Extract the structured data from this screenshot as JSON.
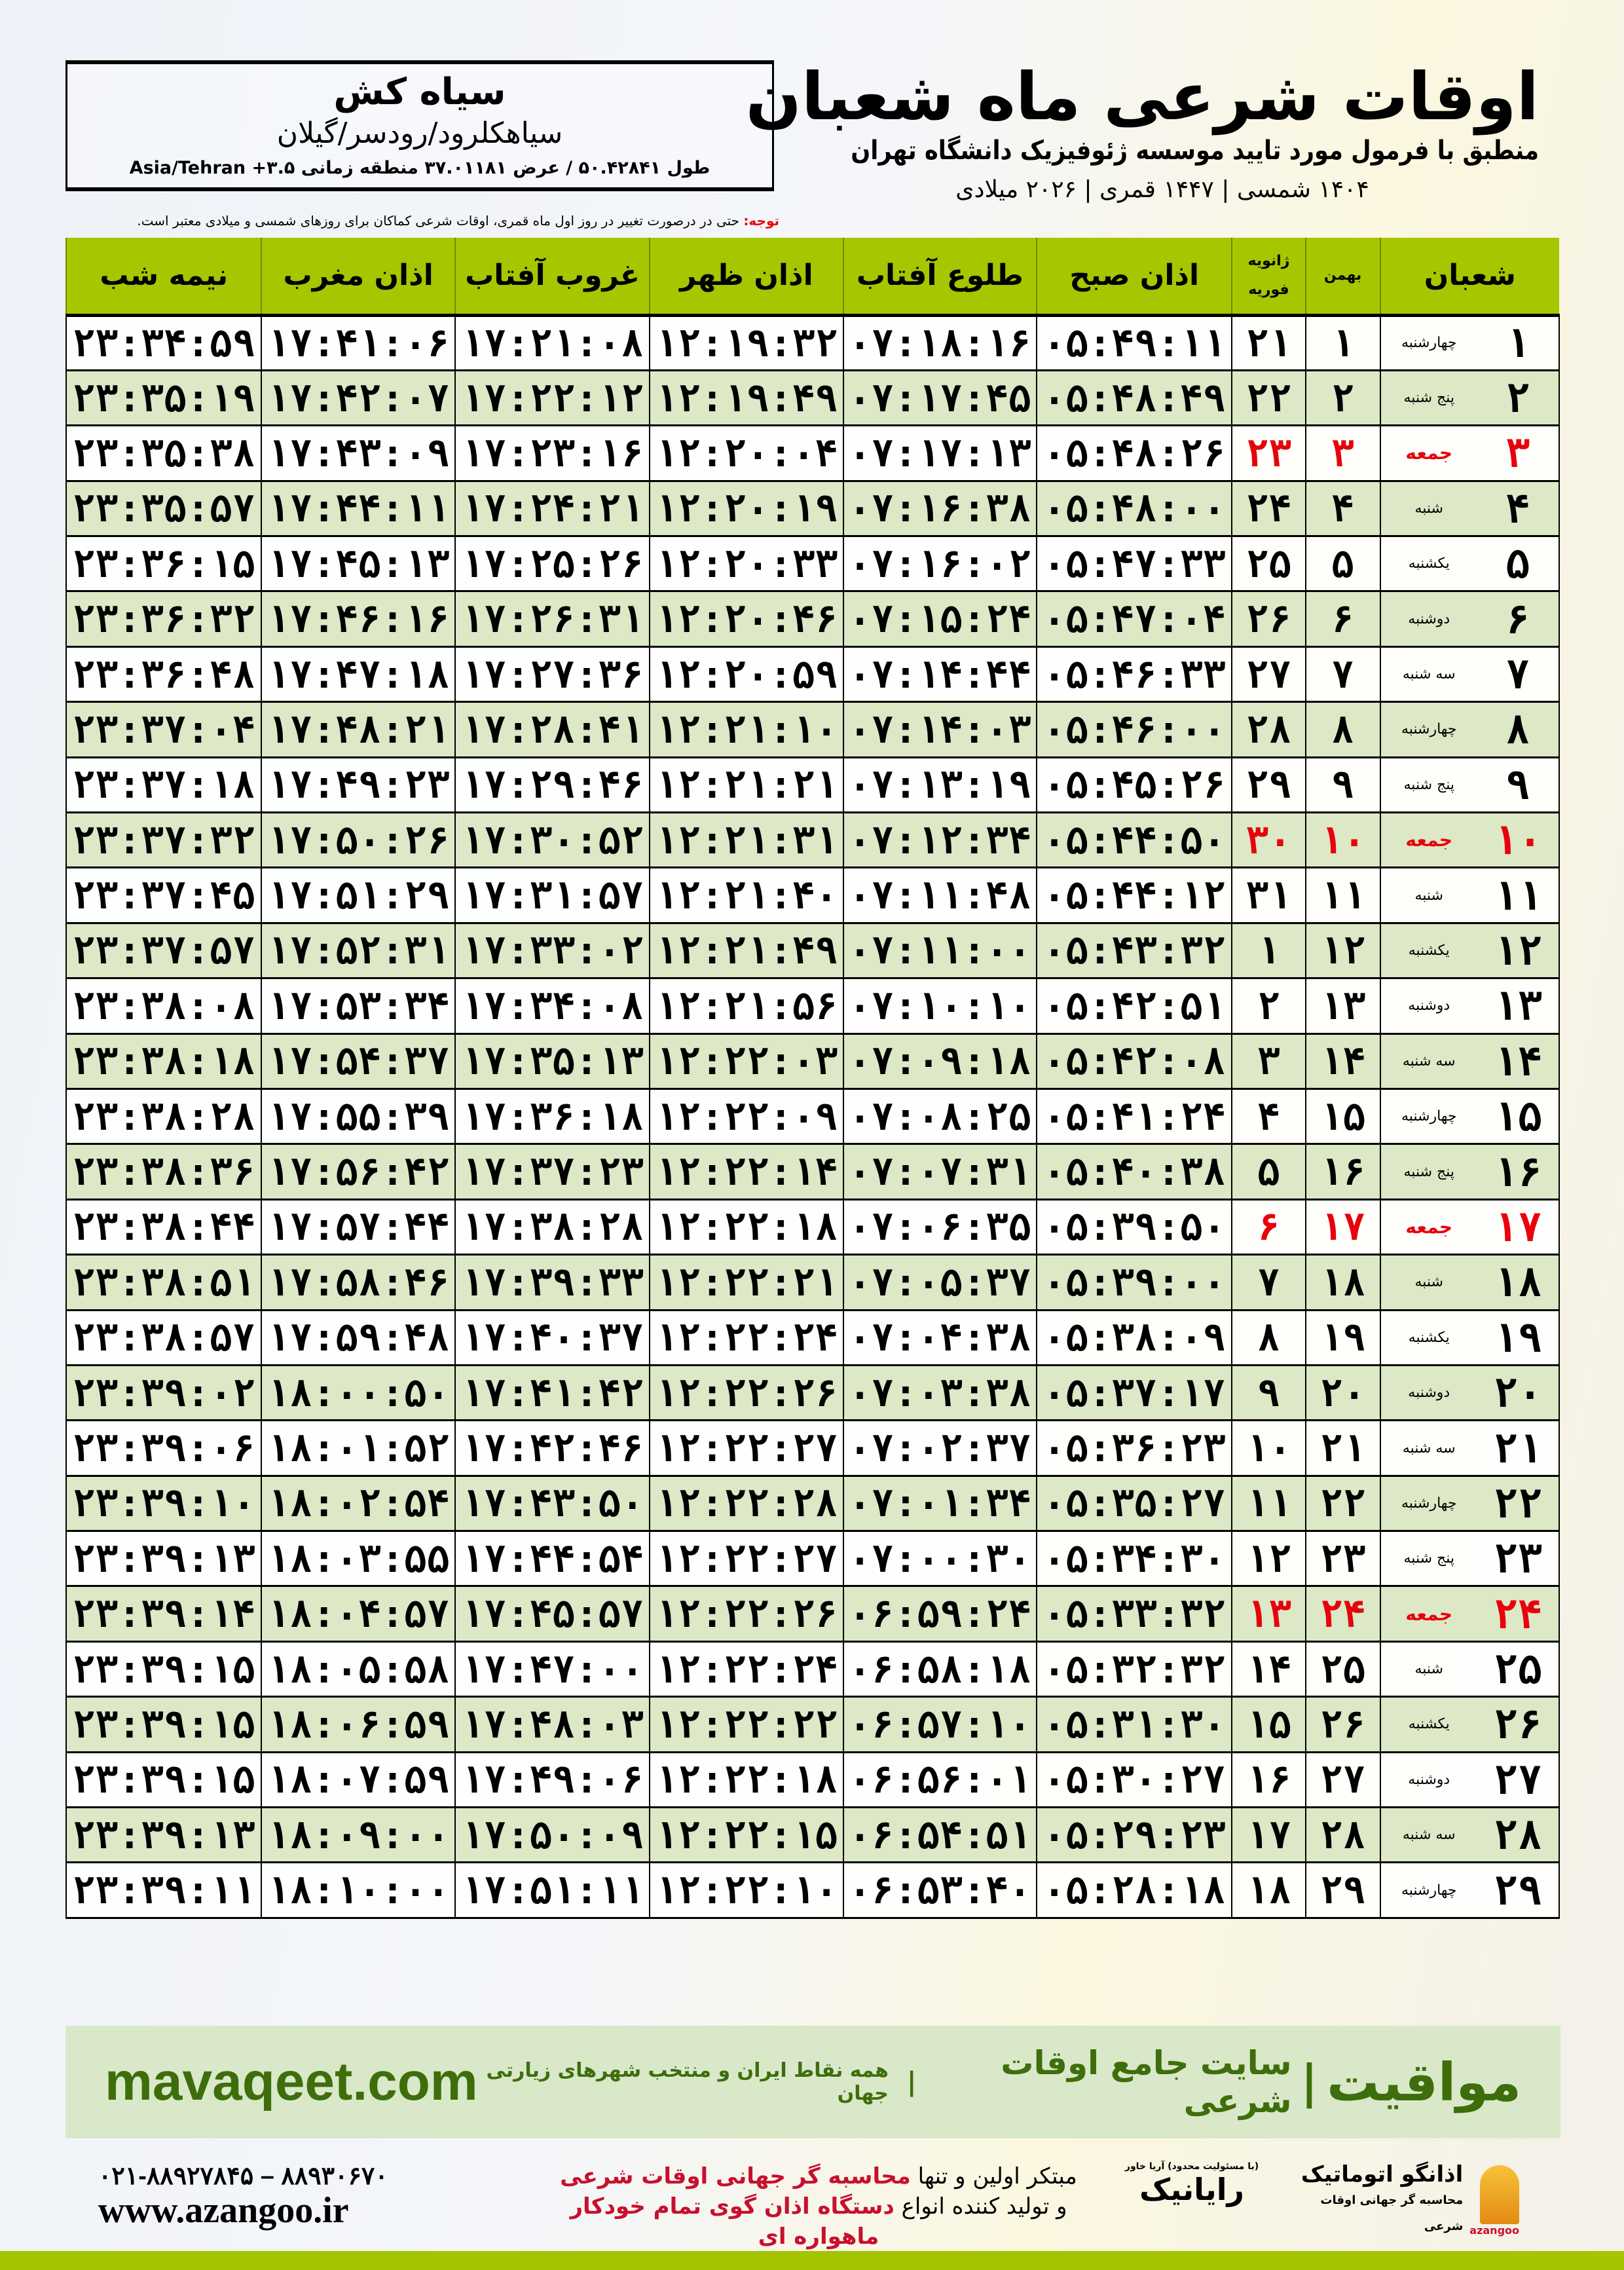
{
  "location": {
    "name": "سیاه کش",
    "region": "سیاهکلرود/رودسر/گیلان",
    "coords": "طول ۵۰.۴۲۸۴۱ / عرض ۳۷.۰۱۱۸۱ منطقه زمانی ۳.۵+ Asia/Tehran"
  },
  "header": {
    "title": "اوقات شرعی ماه شعبان",
    "subtitle": "منطبق با فرمول مورد تایید موسسه ژئوفیزیک دانشگاه تهران",
    "years": "۱۴۰۴ شمسی | ۱۴۴۷ قمری | ۲۰۲۶ میلادی"
  },
  "note": {
    "label": "توجه:",
    "text": " حتی در درصورت تغییر در روز اول ماه قمری، اوقات شرعی کماکان برای روزهای شمسی و میلادی معتبر است."
  },
  "table": {
    "headers": {
      "shaban": "شعبان",
      "bahman": "بهمن",
      "gregorian_1": "ژانویه",
      "gregorian_2": "فوریه",
      "sobh": "اذان صبح",
      "tolu": "طلوع آفتاب",
      "zohr": "اذان ظهر",
      "ghorub": "غروب آفتاب",
      "maghrib": "اذان مغرب",
      "nime": "نیمه شب"
    },
    "accent_header": "#a6c600",
    "friday_color": "#e8000b",
    "rows": [
      [
        "۱",
        "چهارشنبه",
        "۱",
        "۲۱",
        "۰۵:۴۹:۱۱",
        "۰۷:۱۸:۱۶",
        "۱۲:۱۹:۳۲",
        "۱۷:۲۱:۰۸",
        "۱۷:۴۱:۰۶",
        "۲۳:۳۴:۵۹"
      ],
      [
        "۲",
        "پنج شنبه",
        "۲",
        "۲۲",
        "۰۵:۴۸:۴۹",
        "۰۷:۱۷:۴۵",
        "۱۲:۱۹:۴۹",
        "۱۷:۲۲:۱۲",
        "۱۷:۴۲:۰۷",
        "۲۳:۳۵:۱۹"
      ],
      [
        "۳",
        "جمعه",
        "۳",
        "۲۳",
        "۰۵:۴۸:۲۶",
        "۰۷:۱۷:۱۳",
        "۱۲:۲۰:۰۴",
        "۱۷:۲۳:۱۶",
        "۱۷:۴۳:۰۹",
        "۲۳:۳۵:۳۸"
      ],
      [
        "۴",
        "شنبه",
        "۴",
        "۲۴",
        "۰۵:۴۸:۰۰",
        "۰۷:۱۶:۳۸",
        "۱۲:۲۰:۱۹",
        "۱۷:۲۴:۲۱",
        "۱۷:۴۴:۱۱",
        "۲۳:۳۵:۵۷"
      ],
      [
        "۵",
        "یکشنبه",
        "۵",
        "۲۵",
        "۰۵:۴۷:۳۳",
        "۰۷:۱۶:۰۲",
        "۱۲:۲۰:۳۳",
        "۱۷:۲۵:۲۶",
        "۱۷:۴۵:۱۳",
        "۲۳:۳۶:۱۵"
      ],
      [
        "۶",
        "دوشنبه",
        "۶",
        "۲۶",
        "۰۵:۴۷:۰۴",
        "۰۷:۱۵:۲۴",
        "۱۲:۲۰:۴۶",
        "۱۷:۲۶:۳۱",
        "۱۷:۴۶:۱۶",
        "۲۳:۳۶:۳۲"
      ],
      [
        "۷",
        "سه شنبه",
        "۷",
        "۲۷",
        "۰۵:۴۶:۳۳",
        "۰۷:۱۴:۴۴",
        "۱۲:۲۰:۵۹",
        "۱۷:۲۷:۳۶",
        "۱۷:۴۷:۱۸",
        "۲۳:۳۶:۴۸"
      ],
      [
        "۸",
        "چهارشنبه",
        "۸",
        "۲۸",
        "۰۵:۴۶:۰۰",
        "۰۷:۱۴:۰۳",
        "۱۲:۲۱:۱۰",
        "۱۷:۲۸:۴۱",
        "۱۷:۴۸:۲۱",
        "۲۳:۳۷:۰۴"
      ],
      [
        "۹",
        "پنج شنبه",
        "۹",
        "۲۹",
        "۰۵:۴۵:۲۶",
        "۰۷:۱۳:۱۹",
        "۱۲:۲۱:۲۱",
        "۱۷:۲۹:۴۶",
        "۱۷:۴۹:۲۳",
        "۲۳:۳۷:۱۸"
      ],
      [
        "۱۰",
        "جمعه",
        "۱۰",
        "۳۰",
        "۰۵:۴۴:۵۰",
        "۰۷:۱۲:۳۴",
        "۱۲:۲۱:۳۱",
        "۱۷:۳۰:۵۲",
        "۱۷:۵۰:۲۶",
        "۲۳:۳۷:۳۲"
      ],
      [
        "۱۱",
        "شنبه",
        "۱۱",
        "۳۱",
        "۰۵:۴۴:۱۲",
        "۰۷:۱۱:۴۸",
        "۱۲:۲۱:۴۰",
        "۱۷:۳۱:۵۷",
        "۱۷:۵۱:۲۹",
        "۲۳:۳۷:۴۵"
      ],
      [
        "۱۲",
        "یکشنبه",
        "۱۲",
        "۱",
        "۰۵:۴۳:۳۲",
        "۰۷:۱۱:۰۰",
        "۱۲:۲۱:۴۹",
        "۱۷:۳۳:۰۲",
        "۱۷:۵۲:۳۱",
        "۲۳:۳۷:۵۷"
      ],
      [
        "۱۳",
        "دوشنبه",
        "۱۳",
        "۲",
        "۰۵:۴۲:۵۱",
        "۰۷:۱۰:۱۰",
        "۱۲:۲۱:۵۶",
        "۱۷:۳۴:۰۸",
        "۱۷:۵۳:۳۴",
        "۲۳:۳۸:۰۸"
      ],
      [
        "۱۴",
        "سه شنبه",
        "۱۴",
        "۳",
        "۰۵:۴۲:۰۸",
        "۰۷:۰۹:۱۸",
        "۱۲:۲۲:۰۳",
        "۱۷:۳۵:۱۳",
        "۱۷:۵۴:۳۷",
        "۲۳:۳۸:۱۸"
      ],
      [
        "۱۵",
        "چهارشنبه",
        "۱۵",
        "۴",
        "۰۵:۴۱:۲۴",
        "۰۷:۰۸:۲۵",
        "۱۲:۲۲:۰۹",
        "۱۷:۳۶:۱۸",
        "۱۷:۵۵:۳۹",
        "۲۳:۳۸:۲۸"
      ],
      [
        "۱۶",
        "پنج شنبه",
        "۱۶",
        "۵",
        "۰۵:۴۰:۳۸",
        "۰۷:۰۷:۳۱",
        "۱۲:۲۲:۱۴",
        "۱۷:۳۷:۲۳",
        "۱۷:۵۶:۴۲",
        "۲۳:۳۸:۳۶"
      ],
      [
        "۱۷",
        "جمعه",
        "۱۷",
        "۶",
        "۰۵:۳۹:۵۰",
        "۰۷:۰۶:۳۵",
        "۱۲:۲۲:۱۸",
        "۱۷:۳۸:۲۸",
        "۱۷:۵۷:۴۴",
        "۲۳:۳۸:۴۴"
      ],
      [
        "۱۸",
        "شنبه",
        "۱۸",
        "۷",
        "۰۵:۳۹:۰۰",
        "۰۷:۰۵:۳۷",
        "۱۲:۲۲:۲۱",
        "۱۷:۳۹:۳۳",
        "۱۷:۵۸:۴۶",
        "۲۳:۳۸:۵۱"
      ],
      [
        "۱۹",
        "یکشنبه",
        "۱۹",
        "۸",
        "۰۵:۳۸:۰۹",
        "۰۷:۰۴:۳۸",
        "۱۲:۲۲:۲۴",
        "۱۷:۴۰:۳۷",
        "۱۷:۵۹:۴۸",
        "۲۳:۳۸:۵۷"
      ],
      [
        "۲۰",
        "دوشنبه",
        "۲۰",
        "۹",
        "۰۵:۳۷:۱۷",
        "۰۷:۰۳:۳۸",
        "۱۲:۲۲:۲۶",
        "۱۷:۴۱:۴۲",
        "۱۸:۰۰:۵۰",
        "۲۳:۳۹:۰۲"
      ],
      [
        "۲۱",
        "سه شنبه",
        "۲۱",
        "۱۰",
        "۰۵:۳۶:۲۳",
        "۰۷:۰۲:۳۷",
        "۱۲:۲۲:۲۷",
        "۱۷:۴۲:۴۶",
        "۱۸:۰۱:۵۲",
        "۲۳:۳۹:۰۶"
      ],
      [
        "۲۲",
        "چهارشنبه",
        "۲۲",
        "۱۱",
        "۰۵:۳۵:۲۷",
        "۰۷:۰۱:۳۴",
        "۱۲:۲۲:۲۸",
        "۱۷:۴۳:۵۰",
        "۱۸:۰۲:۵۴",
        "۲۳:۳۹:۱۰"
      ],
      [
        "۲۳",
        "پنج شنبه",
        "۲۳",
        "۱۲",
        "۰۵:۳۴:۳۰",
        "۰۷:۰۰:۳۰",
        "۱۲:۲۲:۲۷",
        "۱۷:۴۴:۵۴",
        "۱۸:۰۳:۵۵",
        "۲۳:۳۹:۱۳"
      ],
      [
        "۲۴",
        "جمعه",
        "۲۴",
        "۱۳",
        "۰۵:۳۳:۳۲",
        "۰۶:۵۹:۲۴",
        "۱۲:۲۲:۲۶",
        "۱۷:۴۵:۵۷",
        "۱۸:۰۴:۵۷",
        "۲۳:۳۹:۱۴"
      ],
      [
        "۲۵",
        "شنبه",
        "۲۵",
        "۱۴",
        "۰۵:۳۲:۳۲",
        "۰۶:۵۸:۱۸",
        "۱۲:۲۲:۲۴",
        "۱۷:۴۷:۰۰",
        "۱۸:۰۵:۵۸",
        "۲۳:۳۹:۱۵"
      ],
      [
        "۲۶",
        "یکشنبه",
        "۲۶",
        "۱۵",
        "۰۵:۳۱:۳۰",
        "۰۶:۵۷:۱۰",
        "۱۲:۲۲:۲۲",
        "۱۷:۴۸:۰۳",
        "۱۸:۰۶:۵۹",
        "۲۳:۳۹:۱۵"
      ],
      [
        "۲۷",
        "دوشنبه",
        "۲۷",
        "۱۶",
        "۰۵:۳۰:۲۷",
        "۰۶:۵۶:۰۱",
        "۱۲:۲۲:۱۸",
        "۱۷:۴۹:۰۶",
        "۱۸:۰۷:۵۹",
        "۲۳:۳۹:۱۵"
      ],
      [
        "۲۸",
        "سه شنبه",
        "۲۸",
        "۱۷",
        "۰۵:۲۹:۲۳",
        "۰۶:۵۴:۵۱",
        "۱۲:۲۲:۱۵",
        "۱۷:۵۰:۰۹",
        "۱۸:۰۹:۰۰",
        "۲۳:۳۹:۱۳"
      ],
      [
        "۲۹",
        "چهارشنبه",
        "۲۹",
        "۱۸",
        "۰۵:۲۸:۱۸",
        "۰۶:۵۳:۴۰",
        "۱۲:۲۲:۱۰",
        "۱۷:۵۱:۱۱",
        "۱۸:۱۰:۰۰",
        "۲۳:۳۹:۱۱"
      ]
    ]
  },
  "banner": {
    "brand": "مواقیت",
    "tagline": "سایت جامع اوقات شرعی",
    "tagline2": "همه نقاط ایران و منتخب شهرهای زیارتی جهان",
    "url": "mavaqeet.com",
    "color": "#3e6e0b",
    "background": "#d9e8c9"
  },
  "footer": {
    "phone": "۰۲۱-۸۸۹۲۷۸۴۵ – ۸۸۹۳۰۶۷۰",
    "website": "www.azangoo.ir",
    "slogan_1a": "مبتکر اولین و تنها ",
    "slogan_1b": "محاسبه گر جهانی اوقات شرعی",
    "slogan_2a": "و تولید کننده انواع ",
    "slogan_2b": "دستگاه اذان گوی تمام خودکار ماهواره ای",
    "logo_rayanik": "رایانیک",
    "logo_rayanik_small": "(با مسئولیت محدود) آریا خاور",
    "logo_azangoo": "اذانگو اتوماتیک",
    "logo_azangoo_small": "محاسبه گر جهانی اوقات شرعی",
    "logo_azangoo_en": "azangoo",
    "accent": "#c8102e",
    "bar_color": "#a5c400"
  }
}
